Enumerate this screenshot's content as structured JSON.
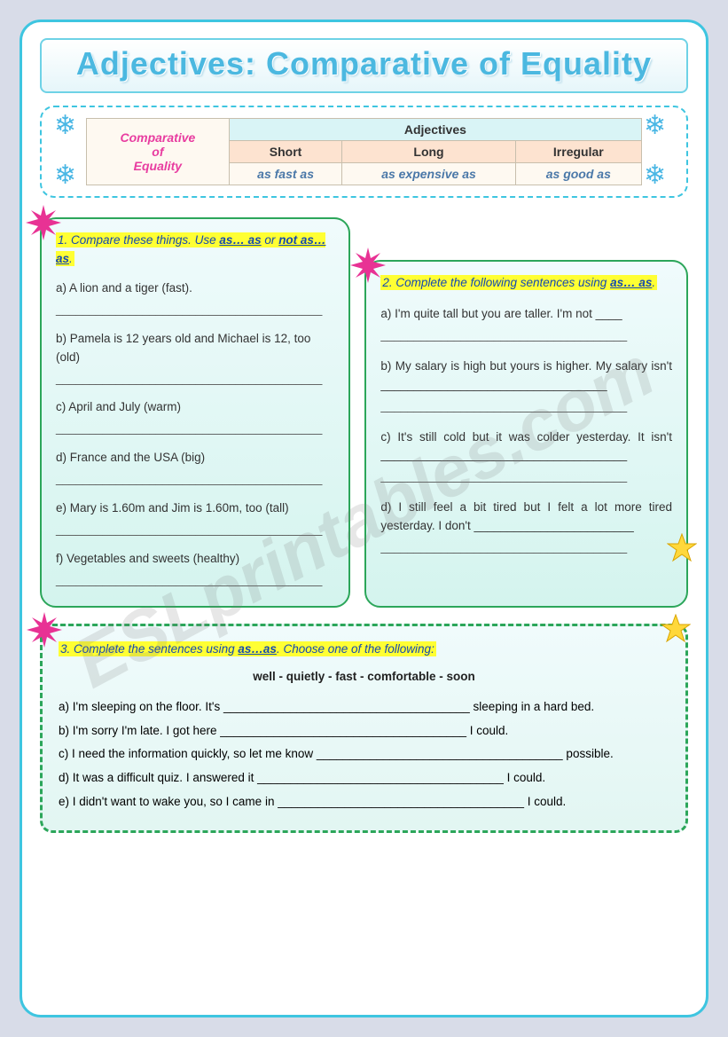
{
  "title": "Adjectives: Comparative of Equality",
  "grammar": {
    "leftLabel": [
      "Comparative",
      "of",
      "Equality"
    ],
    "adjHeader": "Adjectives",
    "cols": [
      "Short",
      "Long",
      "Irregular"
    ],
    "examples": [
      "as fast as",
      "as expensive as",
      "as good as"
    ]
  },
  "ex1": {
    "num": "1.",
    "instr_a": "Compare these things. Use ",
    "key1": "as… as",
    "mid": " or ",
    "key2": "not as…as",
    "dot": ".",
    "items": [
      "a) A lion and a tiger (fast).",
      "b) Pamela is 12 years old and Michael is 12, too (old)",
      "c) April and July (warm)",
      "d) France and the USA (big)",
      "e) Mary is 1.60m and Jim is 1.60m, too (tall)",
      "f) Vegetables and sweets (healthy)"
    ]
  },
  "ex2": {
    "num": "2.",
    "instr_a": "Complete the following sentences using ",
    "key1": "as… as",
    "dot": ".",
    "items": [
      "a) I'm quite tall but you are taller. I'm not ____",
      "b) My salary is high but yours is higher. My salary isn't __________________________________",
      "c) It's still cold but it was colder yesterday. It isn't _____________________________________",
      "d) I still feel a bit tired but I felt a lot more tired yesterday. I don't ________________________"
    ]
  },
  "ex3": {
    "num": "3.",
    "instr_a": "Complete the sentences using ",
    "key1": "as…as",
    "instr_b": ". Choose one of the following:",
    "bank": "well  -  quietly  -  fast  -  comfortable  -  soon",
    "items": [
      {
        "pre": "a) I'm sleeping on the floor. It's ",
        "post": " sleeping in a hard bed."
      },
      {
        "pre": "b) I'm sorry I'm late. I got here ",
        "post": " I could."
      },
      {
        "pre": "c) I need the information quickly, so let me know ",
        "post": " possible."
      },
      {
        "pre": "d) It was a difficult quiz. I answered it ",
        "post": " I could."
      },
      {
        "pre": "e) I didn't want to wake you, so I came in ",
        "post": " I could."
      }
    ],
    "blank": "_____________________________________"
  },
  "underline": "________________________________________",
  "underline2": "_____________________________________",
  "watermark": "ESLprintables.com",
  "colors": {
    "burst": "#e83294",
    "star_fill": "#ffd83b",
    "star_stroke": "#d9a400"
  }
}
